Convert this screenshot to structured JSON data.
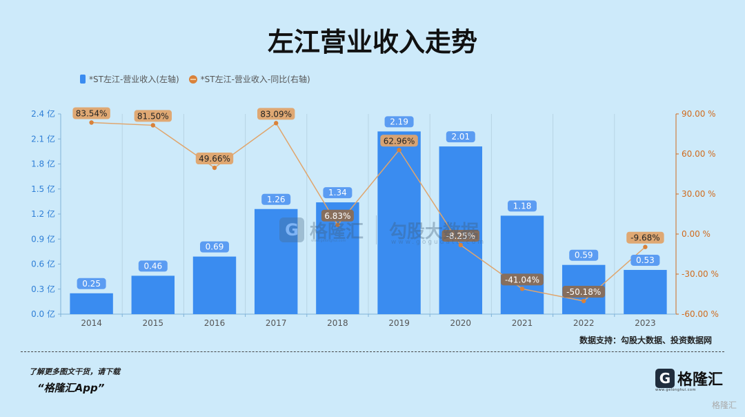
{
  "title": "左江营业收入走势",
  "legend": {
    "bar_label": "*ST左江-营业收入(左轴)",
    "line_label": "*ST左江-营业收入-同比(右轴)"
  },
  "source": "数据支持：勾股大数据、投资数据网",
  "footer": {
    "line1": "了解更多图文干货，请下载",
    "line2": "“格隆汇App”"
  },
  "logo": {
    "mark": "G",
    "name": "格隆汇",
    "url": "www.gelonghui.com"
  },
  "watermark": {
    "mark": "G",
    "name": "格隆汇",
    "name2": "勾股大数据",
    "url1": "www.gelonghui.com",
    "url2": "www.gogudata.com"
  },
  "corner_watermark": "格隆汇",
  "colors": {
    "background": "#cdeafa",
    "bar": "#3a8cf0",
    "line": "#d9823a",
    "left_axis_text": "#2f7fd6",
    "right_axis_text": "#d06a1c"
  },
  "chart_data": {
    "type": "bar+line",
    "categories": [
      "2014",
      "2015",
      "2016",
      "2017",
      "2018",
      "2019",
      "2020",
      "2021",
      "2022",
      "2023"
    ],
    "series": [
      {
        "name": "*ST左江-营业收入(左轴)",
        "type": "bar",
        "axis": "left",
        "values": [
          0.25,
          0.46,
          0.69,
          1.26,
          1.34,
          2.19,
          2.01,
          1.18,
          0.59,
          0.53
        ],
        "labels": [
          "0.25",
          "0.46",
          "0.69",
          "1.26",
          "1.34",
          "2.19",
          "2.01",
          "1.18",
          "0.59",
          "0.53"
        ]
      },
      {
        "name": "*ST左江-营业收入-同比(右轴)",
        "type": "line",
        "axis": "right",
        "values": [
          83.54,
          81.5,
          49.66,
          83.09,
          6.83,
          62.96,
          -8.25,
          -41.04,
          -50.18,
          -9.68
        ],
        "labels": [
          "83.54%",
          "81.50%",
          "49.66%",
          "83.09%",
          "6.83%",
          "62.96%",
          "-8.25%",
          "-41.04%",
          "-50.18%",
          "-9.68%"
        ]
      }
    ],
    "left_axis": {
      "ylim": [
        0,
        2.4
      ],
      "ticks": [
        "0.0 亿",
        "0.3 亿",
        "0.6 亿",
        "0.9 亿",
        "1.2 亿",
        "1.5 亿",
        "1.8 亿",
        "2.1 亿",
        "2.4 亿"
      ]
    },
    "right_axis": {
      "ylim": [
        -60,
        90
      ],
      "ticks": [
        "-60.00 %",
        "-30.00 %",
        "0.00 %",
        "30.00 %",
        "60.00 %",
        "90.00 %"
      ]
    },
    "grid": "vertical"
  }
}
